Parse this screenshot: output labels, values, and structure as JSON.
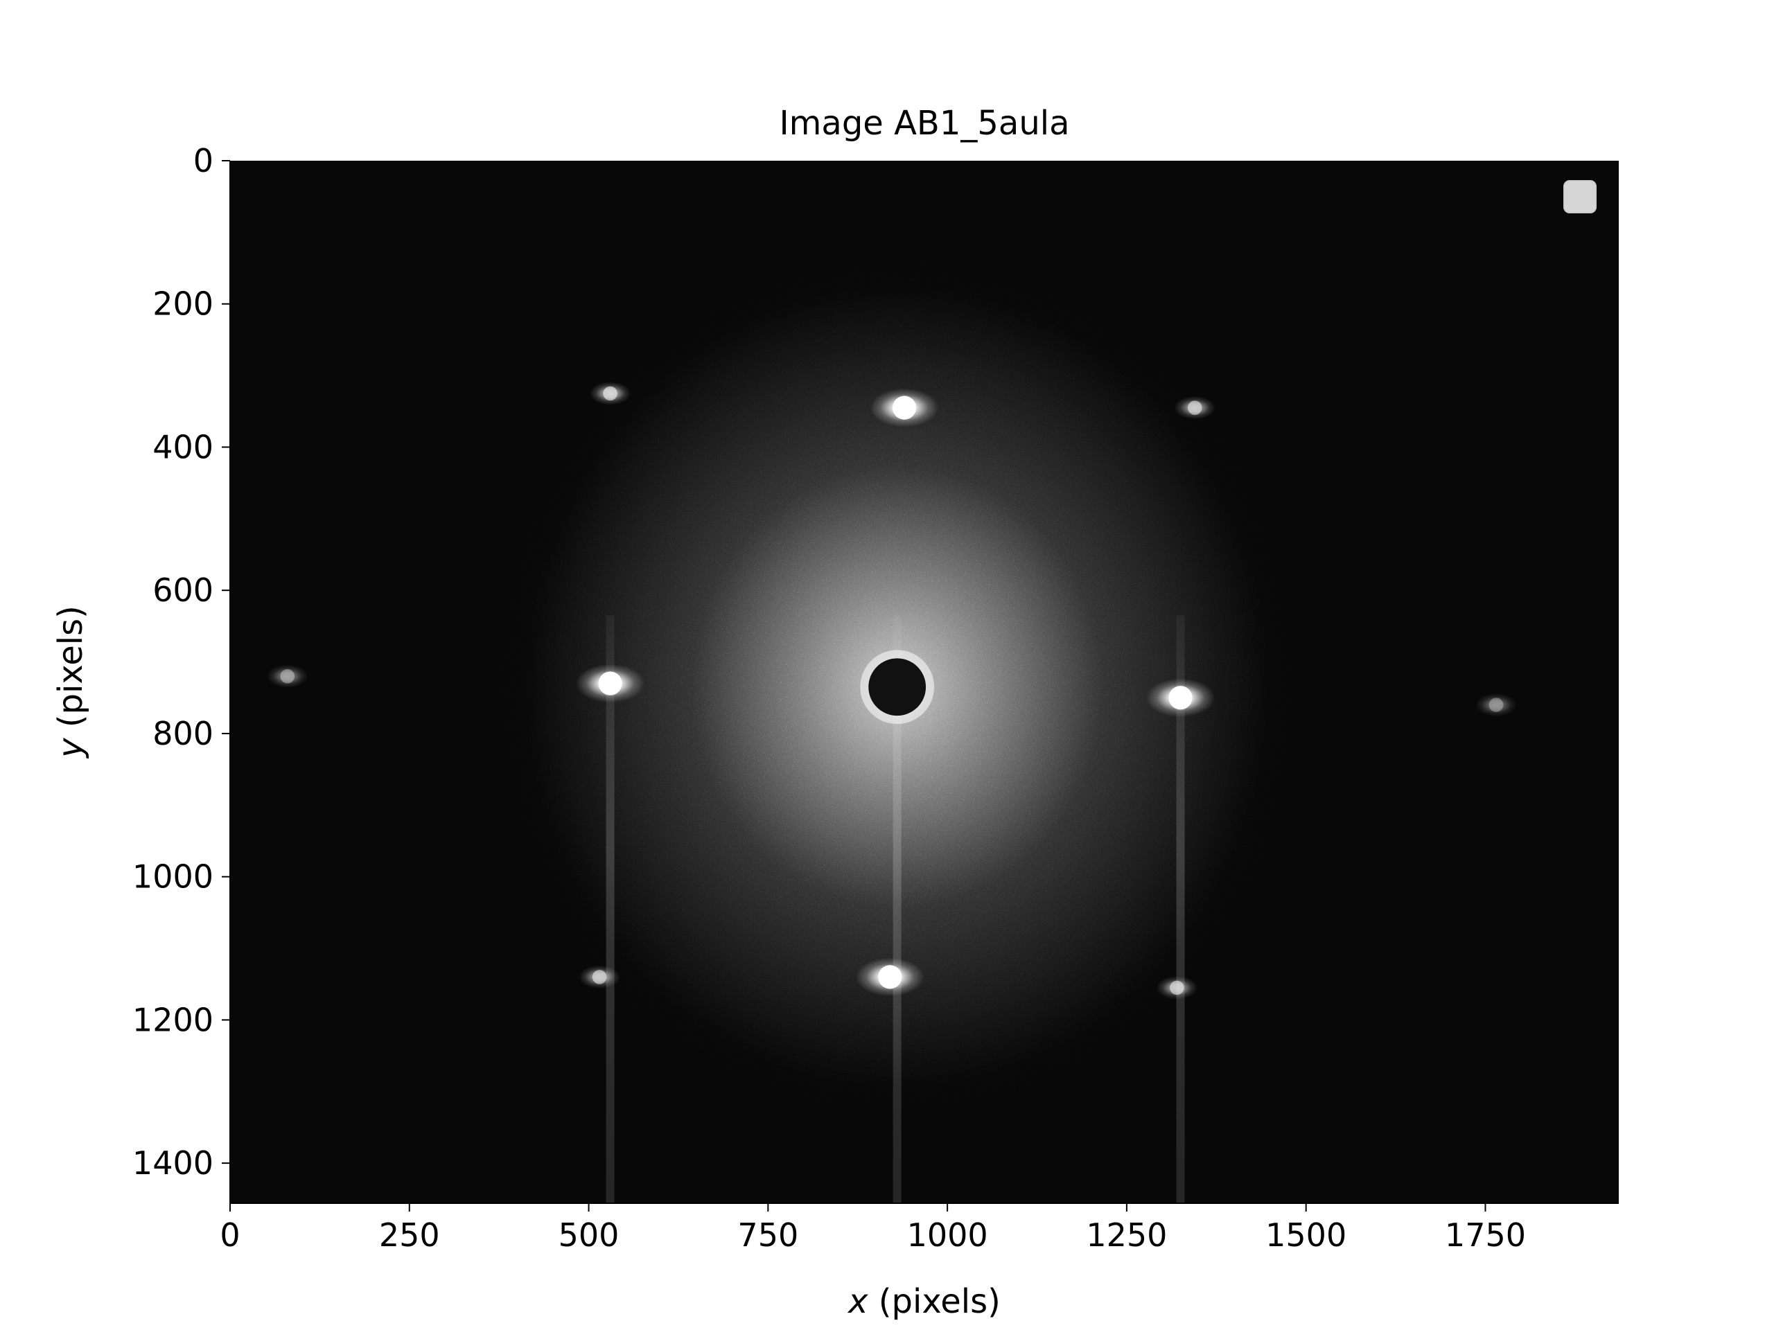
{
  "chart_data": {
    "type": "heatmap",
    "title": "Image AB1_5aula",
    "xlabel_var": "x",
    "xlabel_unit": " (pixels)",
    "ylabel_var": "y",
    "ylabel_unit": " (pixels)",
    "xlim": [
      0,
      1936
    ],
    "ylim": [
      1456,
      0
    ],
    "y_inverted": true,
    "colormap": "gray",
    "grid": false,
    "legend": "top-right, empty",
    "xticks": [
      0,
      250,
      500,
      750,
      1000,
      1250,
      1500,
      1750
    ],
    "yticks": [
      0,
      200,
      400,
      600,
      800,
      1000,
      1200,
      1400
    ],
    "center_disk": {
      "x": 930,
      "y": 735,
      "radius": 40
    },
    "spots": [
      {
        "x": 940,
        "y": 345,
        "intensity": 1.0
      },
      {
        "x": 920,
        "y": 1140,
        "intensity": 1.0
      },
      {
        "x": 530,
        "y": 730,
        "intensity": 1.0
      },
      {
        "x": 1325,
        "y": 750,
        "intensity": 1.0
      },
      {
        "x": 530,
        "y": 325,
        "intensity": 0.55
      },
      {
        "x": 1345,
        "y": 345,
        "intensity": 0.5
      },
      {
        "x": 515,
        "y": 1140,
        "intensity": 0.5
      },
      {
        "x": 1320,
        "y": 1155,
        "intensity": 0.5
      },
      {
        "x": 80,
        "y": 720,
        "intensity": 0.35
      },
      {
        "x": 1765,
        "y": 760,
        "intensity": 0.3
      }
    ],
    "streaks_x": [
      530,
      930,
      1325
    ]
  }
}
